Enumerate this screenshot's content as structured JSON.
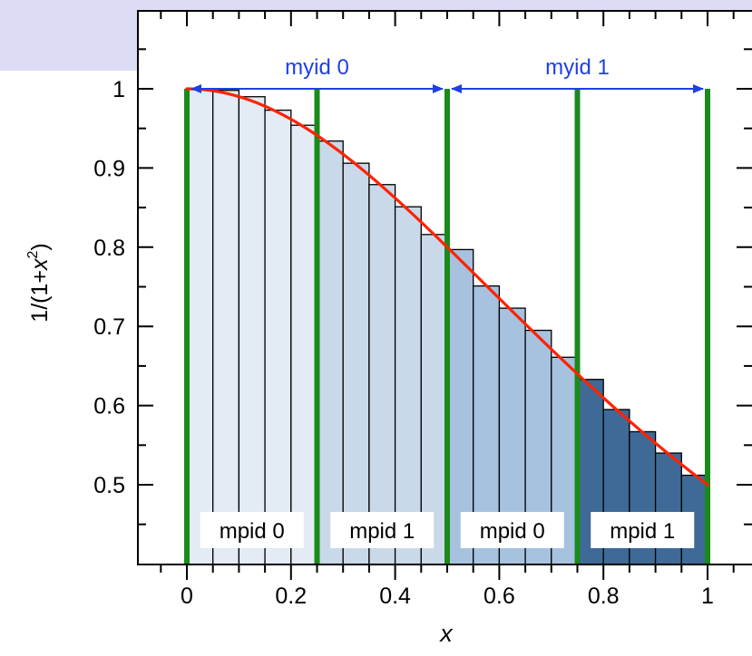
{
  "colors": {
    "background_band": "#dcdcf6",
    "plot_border": "#000000",
    "curve": "#ff2200",
    "divider": "#1a8a1a",
    "arrow": "#1f3fe6",
    "arrow_label": "#1f3fe6",
    "bar_edge": "#000000",
    "bar_fill_1": "#e3ebf5",
    "bar_fill_2": "#c9d9ea",
    "bar_fill_3": "#a7c2df",
    "bar_fill_4": "#3f6a98"
  },
  "chart_data": {
    "type": "bar",
    "title": "",
    "xlabel": "x",
    "ylabel": "1/(1+x2)",
    "xlim": [
      -0.1,
      1.08
    ],
    "ylim": [
      0.42,
      1.1
    ],
    "xticks": [
      "0",
      "0.2",
      "0.4",
      "0.6",
      "0.8",
      "1"
    ],
    "xtick_values": [
      0,
      0.2,
      0.4,
      0.6,
      0.8,
      1
    ],
    "yticks": [
      "0.5",
      "0.6",
      "0.7",
      "0.8",
      "0.9",
      "1"
    ],
    "ytick_values": [
      0.5,
      0.6,
      0.7,
      0.8,
      0.9,
      1
    ],
    "bar_width": 0.05,
    "bars": [
      {
        "x": 0.0,
        "value": 1.0,
        "group": 1
      },
      {
        "x": 0.05,
        "value": 0.998,
        "group": 1
      },
      {
        "x": 0.1,
        "value": 0.99,
        "group": 1
      },
      {
        "x": 0.15,
        "value": 0.973,
        "group": 1
      },
      {
        "x": 0.2,
        "value": 0.954,
        "group": 1
      },
      {
        "x": 0.25,
        "value": 0.934,
        "group": 2
      },
      {
        "x": 0.3,
        "value": 0.906,
        "group": 2
      },
      {
        "x": 0.35,
        "value": 0.879,
        "group": 2
      },
      {
        "x": 0.4,
        "value": 0.851,
        "group": 2
      },
      {
        "x": 0.45,
        "value": 0.816,
        "group": 2
      },
      {
        "x": 0.5,
        "value": 0.797,
        "group": 3
      },
      {
        "x": 0.55,
        "value": 0.751,
        "group": 3
      },
      {
        "x": 0.6,
        "value": 0.723,
        "group": 3
      },
      {
        "x": 0.65,
        "value": 0.695,
        "group": 3
      },
      {
        "x": 0.7,
        "value": 0.661,
        "group": 3
      },
      {
        "x": 0.75,
        "value": 0.633,
        "group": 4
      },
      {
        "x": 0.8,
        "value": 0.595,
        "group": 4
      },
      {
        "x": 0.85,
        "value": 0.567,
        "group": 4
      },
      {
        "x": 0.9,
        "value": 0.54,
        "group": 4
      },
      {
        "x": 0.95,
        "value": 0.512,
        "group": 4
      }
    ],
    "curve": {
      "name": "",
      "x": [
        0,
        0.1,
        0.2,
        0.3,
        0.4,
        0.5,
        0.6,
        0.7,
        0.8,
        0.9,
        1.0
      ],
      "y": [
        1.0,
        0.9901,
        0.9615,
        0.9174,
        0.8621,
        0.8,
        0.7353,
        0.6711,
        0.6098,
        0.5525,
        0.5
      ]
    },
    "dividers": [
      0,
      0.25,
      0.5,
      0.75,
      1.0
    ],
    "arrows": [
      {
        "label": "myid 0",
        "from": 0,
        "to": 0.5,
        "y": 1.0
      },
      {
        "label": "myid 1",
        "from": 0.5,
        "to": 1.0,
        "y": 1.0
      }
    ],
    "region_labels": [
      {
        "label": "mpid 0",
        "center": 0.125
      },
      {
        "label": "mpid 1",
        "center": 0.375
      },
      {
        "label": "mpid 0",
        "center": 0.625
      },
      {
        "label": "mpid 1",
        "center": 0.875
      }
    ],
    "grid": false
  }
}
